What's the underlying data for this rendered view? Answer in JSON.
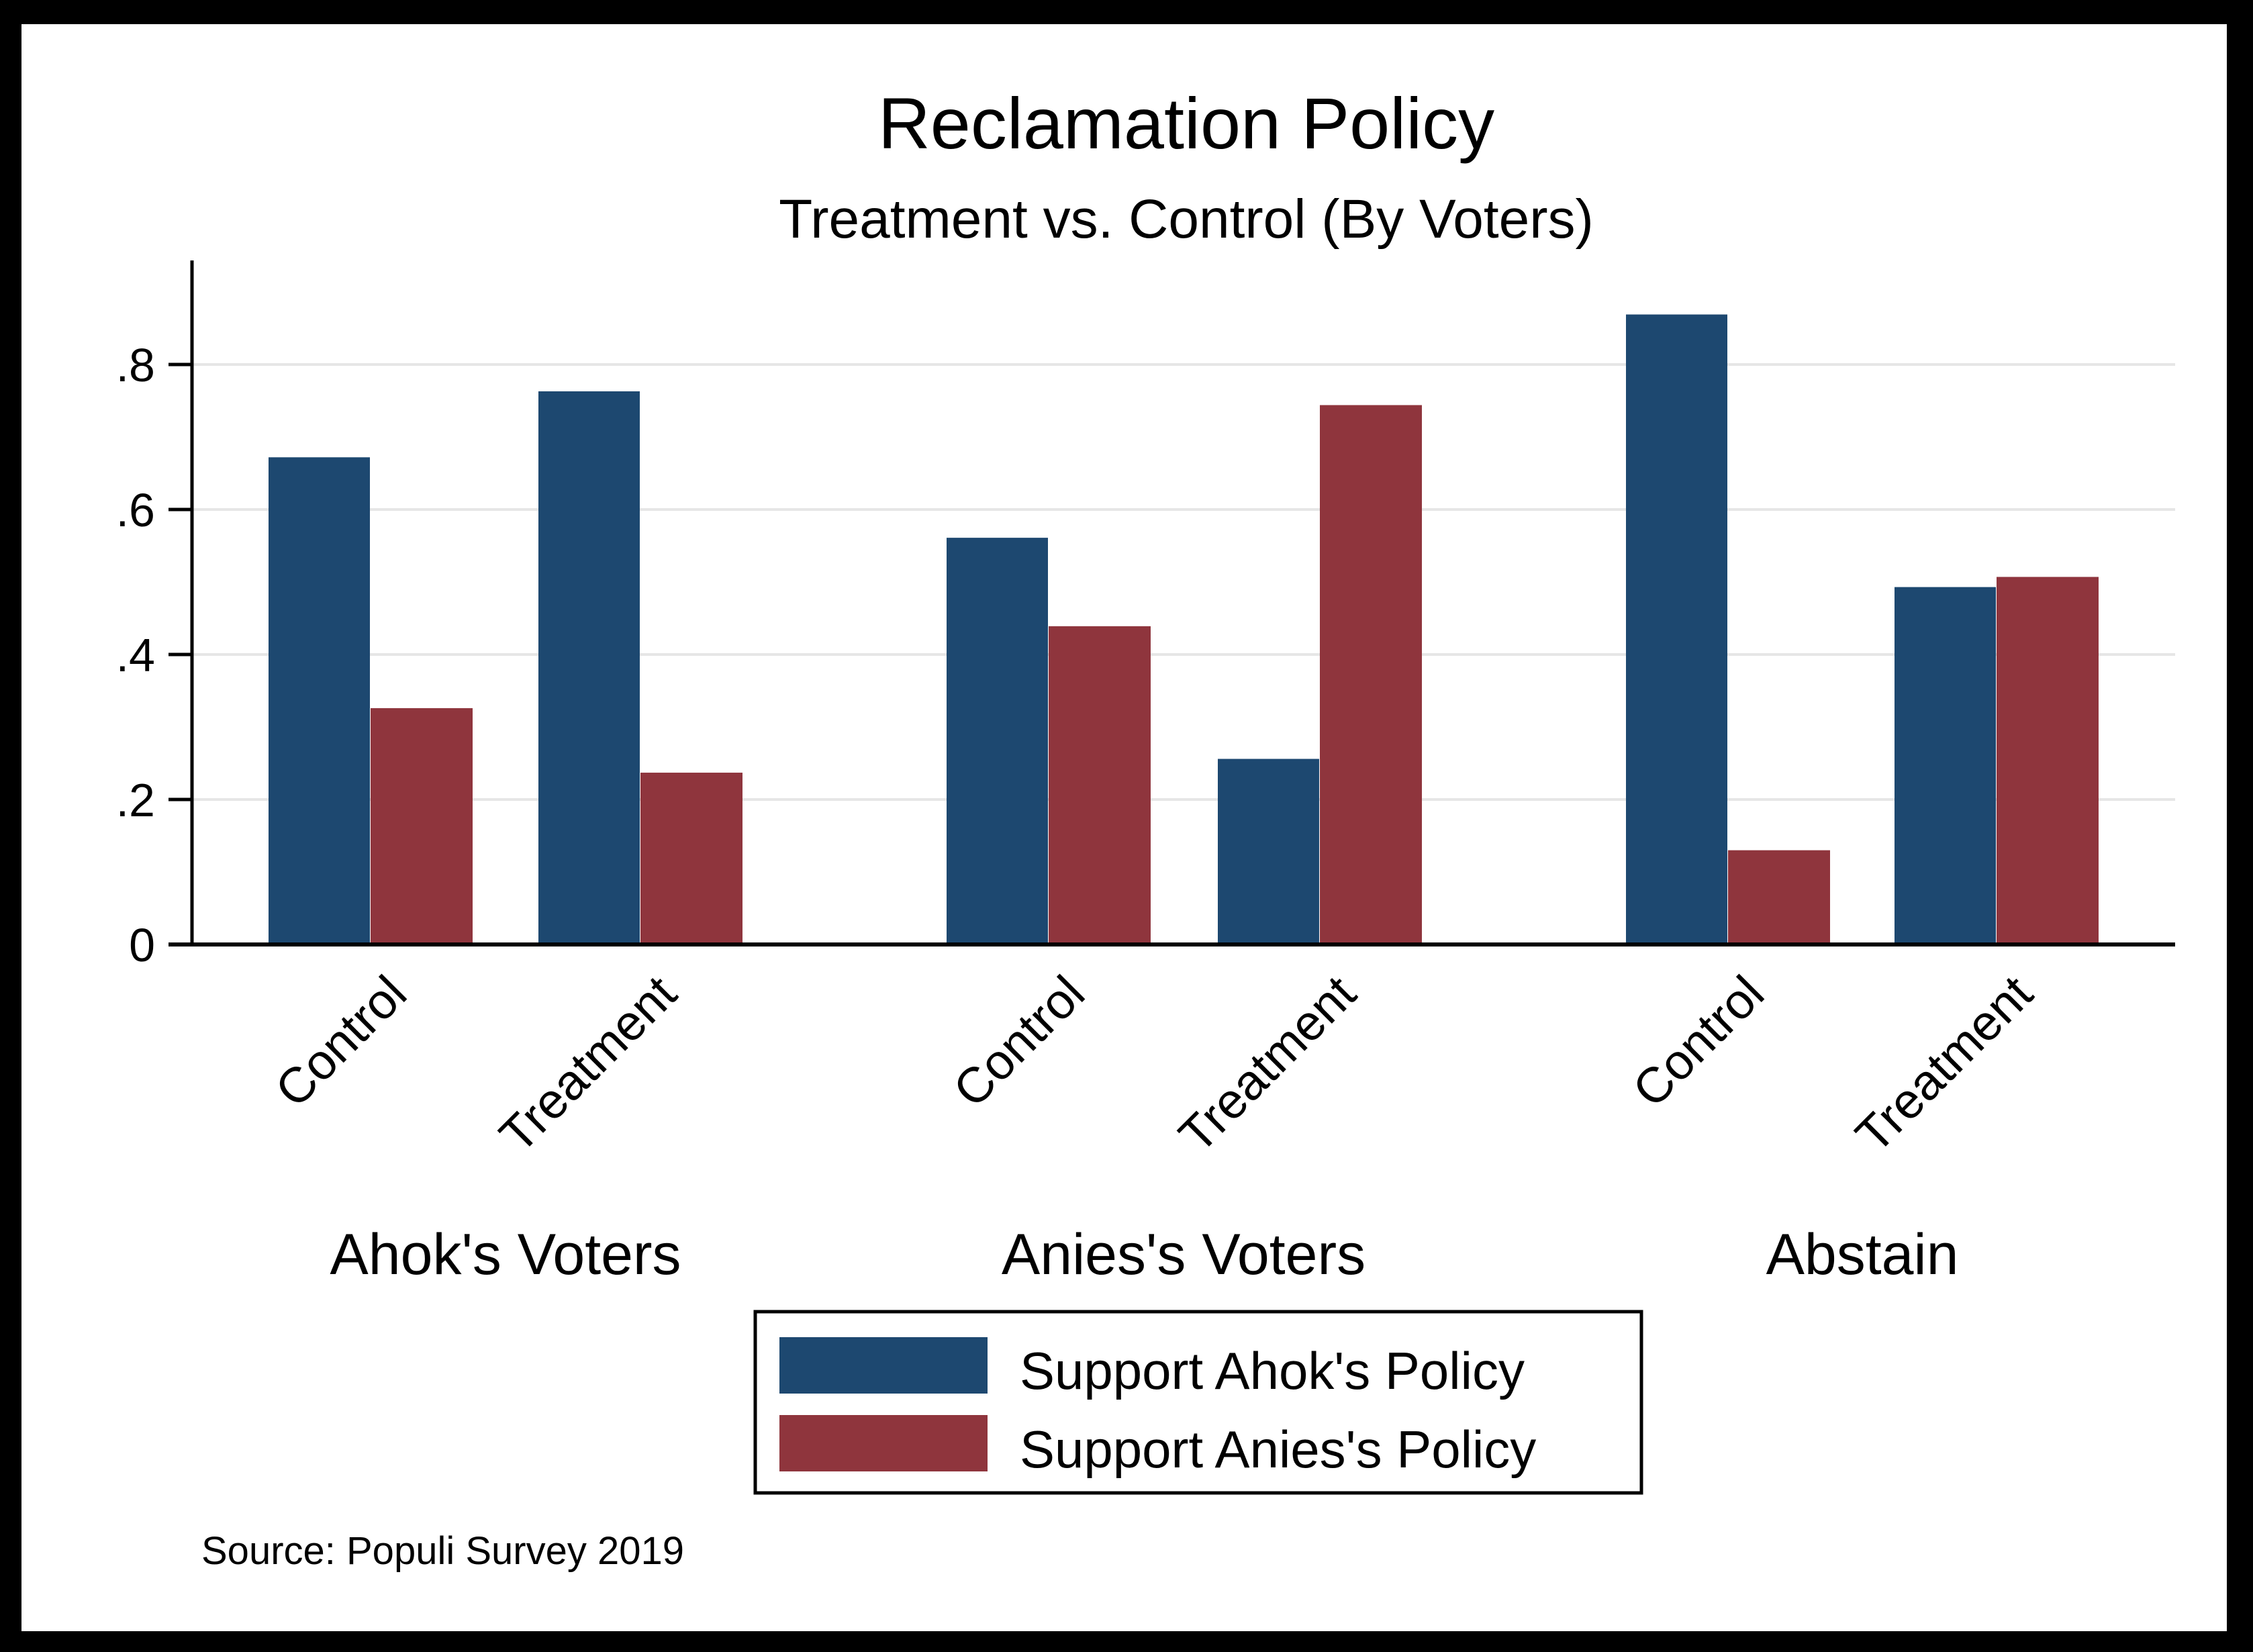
{
  "chart_data": {
    "type": "bar",
    "title": "Reclamation Policy",
    "subtitle": "Treatment vs. Control (By Voters)",
    "xlabel": "",
    "ylabel": "",
    "ylim": [
      0,
      0.95
    ],
    "yticks": [
      0,
      0.2,
      0.4,
      0.6,
      0.8
    ],
    "ytick_labels": [
      "0",
      ".2",
      ".4",
      ".6",
      ".8"
    ],
    "grid": true,
    "groups": [
      {
        "label": "Ahok's Voters",
        "categories": [
          "Control",
          "Treatment"
        ]
      },
      {
        "label": "Anies's Voters",
        "categories": [
          "Control",
          "Treatment"
        ]
      },
      {
        "label": "Abstain",
        "categories": [
          "Control",
          "Treatment"
        ]
      }
    ],
    "categories": [
      "Ahok's Voters / Control",
      "Ahok's Voters / Treatment",
      "Anies's Voters / Control",
      "Anies's Voters / Treatment",
      "Abstain / Control",
      "Abstain / Treatment"
    ],
    "series": [
      {
        "name": "Support Ahok's Policy",
        "color": "#1d4870",
        "values": [
          0.672,
          0.763,
          0.561,
          0.256,
          0.869,
          0.493
        ]
      },
      {
        "name": "Support Anies's Policy",
        "color": "#8f353d",
        "values": [
          0.326,
          0.237,
          0.439,
          0.744,
          0.13,
          0.507
        ]
      }
    ],
    "legend": {
      "position": "bottom-center",
      "entries": [
        "Support Ahok's Policy",
        "Support Anies's Policy"
      ]
    },
    "note": "Source: Populi Survey 2019"
  }
}
